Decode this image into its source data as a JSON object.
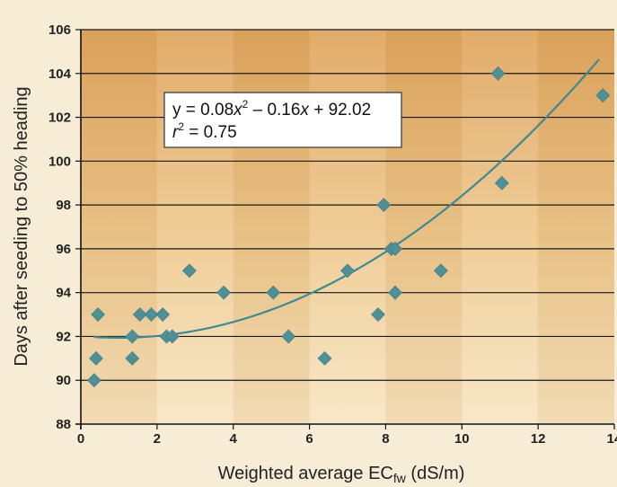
{
  "chart_data": {
    "type": "scatter",
    "xlabel": "Weighted average EC",
    "xlabel_sub": "fw",
    "xlabel_unit": " (dS/m)",
    "ylabel": "Days after seeding to 50% heading",
    "xlim": [
      0,
      14
    ],
    "ylim": [
      88,
      106
    ],
    "x_ticks": [
      0,
      2,
      4,
      6,
      8,
      10,
      12,
      14
    ],
    "y_ticks": [
      88,
      90,
      92,
      94,
      96,
      98,
      100,
      102,
      104,
      106
    ],
    "grid": "horizontal",
    "marker_color": "#4f8f96",
    "curve_color": "#3d8a93",
    "points": [
      {
        "x": 0.35,
        "y": 90
      },
      {
        "x": 0.4,
        "y": 91
      },
      {
        "x": 0.45,
        "y": 93
      },
      {
        "x": 1.35,
        "y": 92
      },
      {
        "x": 1.35,
        "y": 91
      },
      {
        "x": 1.55,
        "y": 93
      },
      {
        "x": 1.85,
        "y": 93
      },
      {
        "x": 2.15,
        "y": 93
      },
      {
        "x": 2.25,
        "y": 92
      },
      {
        "x": 2.4,
        "y": 92
      },
      {
        "x": 2.85,
        "y": 95
      },
      {
        "x": 3.75,
        "y": 94
      },
      {
        "x": 5.05,
        "y": 94
      },
      {
        "x": 5.45,
        "y": 92
      },
      {
        "x": 6.4,
        "y": 91
      },
      {
        "x": 7.0,
        "y": 95
      },
      {
        "x": 7.8,
        "y": 93
      },
      {
        "x": 7.95,
        "y": 98
      },
      {
        "x": 8.15,
        "y": 96
      },
      {
        "x": 8.25,
        "y": 96
      },
      {
        "x": 8.25,
        "y": 94
      },
      {
        "x": 9.45,
        "y": 95
      },
      {
        "x": 10.95,
        "y": 104
      },
      {
        "x": 11.05,
        "y": 99
      },
      {
        "x": 13.7,
        "y": 103
      }
    ],
    "fit": {
      "type": "quadratic",
      "coefficients": [
        0.08,
        -0.16,
        92.02
      ],
      "x_range": [
        0.35,
        13.6
      ]
    },
    "annotation": {
      "equation_prefix": "y = 0.08",
      "equation_var1": "x",
      "equation_sup": "2",
      "equation_mid": " – 0.16",
      "equation_var2": "x",
      "equation_suffix": " + 92.02",
      "r2_var": "r",
      "r2_sup": "2",
      "r2_value": " = 0.75"
    }
  }
}
